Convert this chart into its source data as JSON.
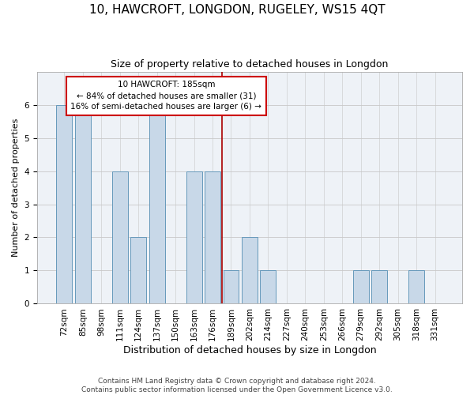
{
  "title": "10, HAWCROFT, LONGDON, RUGELEY, WS15 4QT",
  "subtitle": "Size of property relative to detached houses in Longdon",
  "xlabel": "Distribution of detached houses by size in Longdon",
  "ylabel": "Number of detached properties",
  "categories": [
    "72sqm",
    "85sqm",
    "98sqm",
    "111sqm",
    "124sqm",
    "137sqm",
    "150sqm",
    "163sqm",
    "176sqm",
    "189sqm",
    "202sqm",
    "214sqm",
    "227sqm",
    "240sqm",
    "253sqm",
    "266sqm",
    "279sqm",
    "292sqm",
    "305sqm",
    "318sqm",
    "331sqm"
  ],
  "values": [
    6,
    6,
    0,
    4,
    2,
    6,
    0,
    4,
    4,
    1,
    2,
    1,
    0,
    0,
    0,
    0,
    1,
    1,
    0,
    1,
    0
  ],
  "bar_color": "#c8d8e8",
  "bar_edge_color": "#6699bb",
  "red_line_color": "#aa0000",
  "annotation_line1": "10 HAWCROFT: 185sqm",
  "annotation_line2": "← 84% of detached houses are smaller (31)",
  "annotation_line3": "16% of semi-detached houses are larger (6) →",
  "annotation_box_color": "#ffffff",
  "annotation_box_edge_color": "#cc0000",
  "ylim": [
    0,
    7
  ],
  "yticks": [
    0,
    1,
    2,
    3,
    4,
    5,
    6,
    7
  ],
  "footer_text": "Contains HM Land Registry data © Crown copyright and database right 2024.\nContains public sector information licensed under the Open Government Licence v3.0.",
  "background_color": "#eef2f7",
  "grid_color": "#c8c8c8",
  "title_fontsize": 11,
  "subtitle_fontsize": 9,
  "xlabel_fontsize": 9,
  "ylabel_fontsize": 8,
  "tick_fontsize": 7.5,
  "footer_fontsize": 6.5,
  "annotation_fontsize": 7.5,
  "red_line_x": 8.5
}
